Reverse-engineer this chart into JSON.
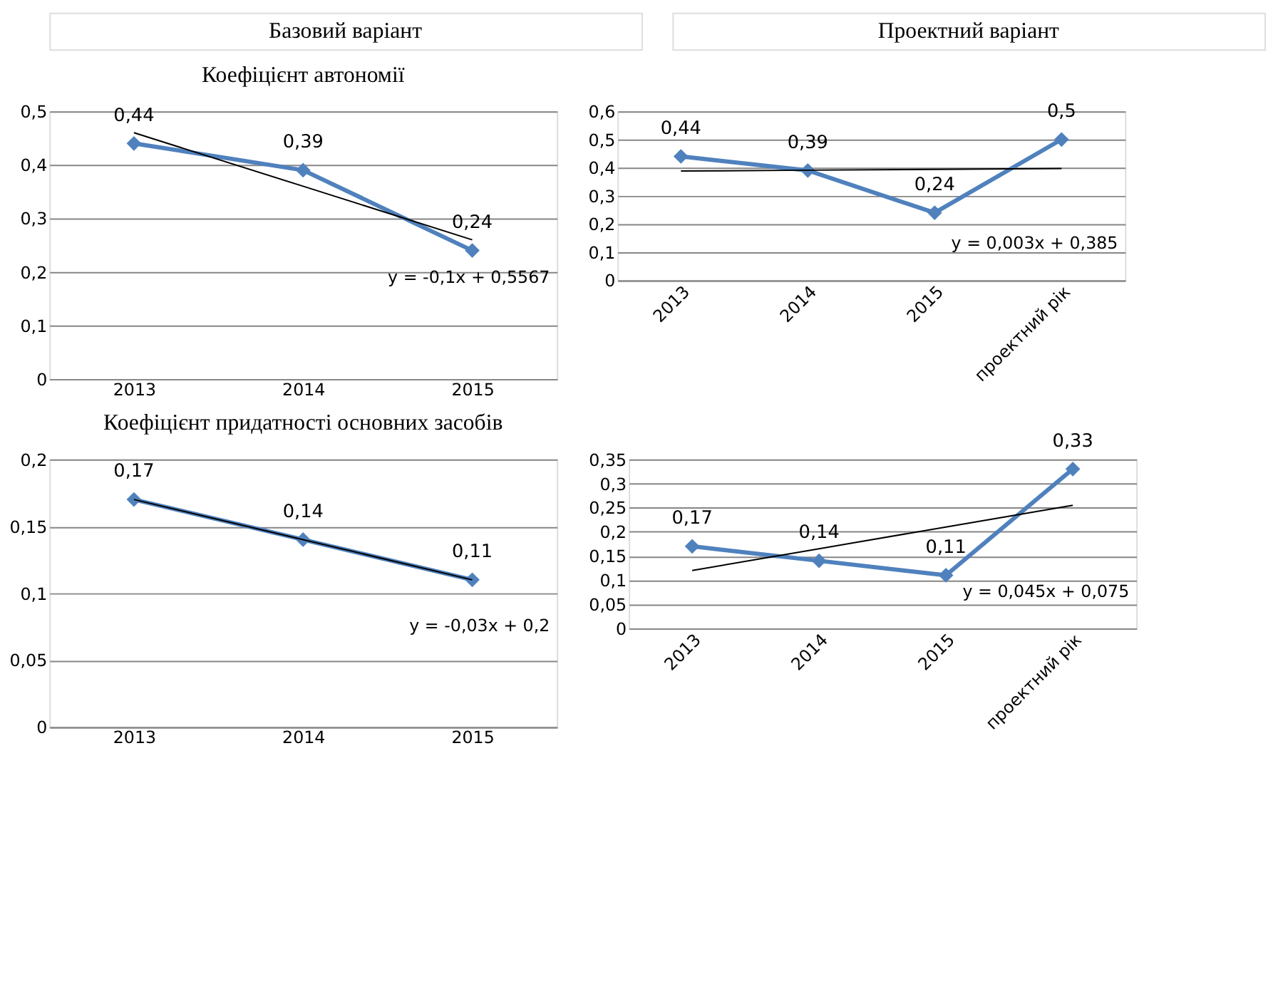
{
  "chart_data": [
    {
      "type": "line",
      "title": "Коефіцієнт автономії",
      "subtitle": "Базовий варіант",
      "categories": [
        "2013",
        "2014",
        "2015"
      ],
      "series": [
        {
          "color": "#4f81bd",
          "values": [
            0.44,
            0.39,
            0.24
          ],
          "value_labels": [
            "0,44",
            "0,39",
            "0,24"
          ],
          "marker": "diamond"
        },
        {
          "color": "#000000",
          "values": [
            0.46,
            0.36,
            0.26
          ],
          "marker": "none"
        }
      ],
      "ylim": [
        0,
        0.5
      ],
      "yticks": [
        {
          "value": 0,
          "label": "0"
        },
        {
          "value": 0.1,
          "label": "0,1"
        },
        {
          "value": 0.2,
          "label": "0,2"
        },
        {
          "value": 0.3,
          "label": "0,3"
        },
        {
          "value": 0.4,
          "label": "0,4"
        },
        {
          "value": 0.5,
          "label": "0,5"
        }
      ],
      "grid": "y",
      "line_style": "solid",
      "annotations": [
        "y = -0,1x + 0,5567"
      ]
    },
    {
      "type": "line",
      "subtitle": "Проектний варіант",
      "categories": [
        "2013",
        "2014",
        "2015",
        "проектний рік"
      ],
      "series": [
        {
          "color": "#4f81bd",
          "values": [
            0.44,
            0.39,
            0.24,
            0.5
          ],
          "value_labels": [
            "0,44",
            "0,39",
            "0,24",
            "0,5"
          ],
          "marker": "diamond"
        },
        {
          "color": "#000000",
          "values": [
            0.388,
            0.391,
            0.394,
            0.397
          ],
          "marker": "none"
        }
      ],
      "ylim": [
        0,
        0.6
      ],
      "yticks": [
        {
          "value": 0,
          "label": "0"
        },
        {
          "value": 0.1,
          "label": "0,1"
        },
        {
          "value": 0.2,
          "label": "0,2"
        },
        {
          "value": 0.3,
          "label": "0,3"
        },
        {
          "value": 0.4,
          "label": "0,4"
        },
        {
          "value": 0.5,
          "label": "0,5"
        },
        {
          "value": 0.6,
          "label": "0,6"
        }
      ],
      "grid": "y",
      "line_style": "solid",
      "annotations": [
        "y = 0,003x + 0,385"
      ]
    },
    {
      "type": "line",
      "title": "Коефіцієнт придатності основних засобів",
      "categories": [
        "2013",
        "2014",
        "2015"
      ],
      "series": [
        {
          "color": "#4f81bd",
          "values": [
            0.17,
            0.14,
            0.11
          ],
          "value_labels": [
            "0,17",
            "0,14",
            "0,11"
          ],
          "marker": "diamond"
        },
        {
          "color": "#000000",
          "values": [
            0.17,
            0.14,
            0.11
          ],
          "marker": "none"
        }
      ],
      "ylim": [
        0,
        0.2
      ],
      "yticks": [
        {
          "value": 0,
          "label": "0"
        },
        {
          "value": 0.05,
          "label": "0,05"
        },
        {
          "value": 0.1,
          "label": "0,1"
        },
        {
          "value": 0.15,
          "label": "0,15"
        },
        {
          "value": 0.2,
          "label": "0,2"
        }
      ],
      "grid": "y",
      "line_style": "solid",
      "annotations": [
        "y = -0,03x + 0,2"
      ]
    },
    {
      "type": "line",
      "categories": [
        "2013",
        "2014",
        "2015",
        "проектний рік"
      ],
      "series": [
        {
          "color": "#4f81bd",
          "values": [
            0.17,
            0.14,
            0.11,
            0.33
          ],
          "value_labels": [
            "0,17",
            "0,14",
            "0,11",
            "0,33"
          ],
          "marker": "diamond"
        },
        {
          "color": "#000000",
          "values": [
            0.12,
            0.165,
            0.21,
            0.255
          ],
          "marker": "none"
        }
      ],
      "ylim": [
        0,
        0.35
      ],
      "yticks": [
        {
          "value": 0,
          "label": "0"
        },
        {
          "value": 0.05,
          "label": "0,05"
        },
        {
          "value": 0.1,
          "label": "0,1"
        },
        {
          "value": 0.15,
          "label": "0,15"
        },
        {
          "value": 0.2,
          "label": "0,2"
        },
        {
          "value": 0.25,
          "label": "0,25"
        },
        {
          "value": 0.3,
          "label": "0,3"
        },
        {
          "value": 0.35,
          "label": "0,35"
        }
      ],
      "grid": "y",
      "line_style": "solid",
      "annotations": [
        "y = 0,045x + 0,075"
      ]
    }
  ]
}
